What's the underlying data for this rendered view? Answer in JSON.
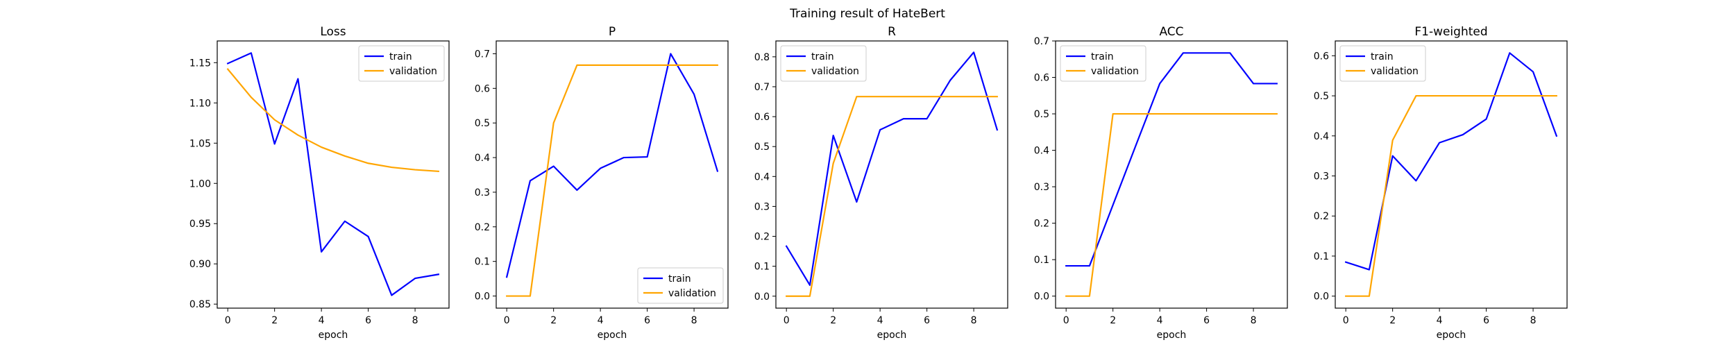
{
  "figure": {
    "suptitle": "Training result of HateBert"
  },
  "colors": {
    "train": "#0000ff",
    "validation": "#ffa500"
  },
  "chart_data": [
    {
      "type": "line",
      "title": "Loss",
      "xlabel": "epoch",
      "ylabel": "",
      "xlim": [
        -0.45,
        9.45
      ],
      "ylim": [
        0.845,
        1.177
      ],
      "xticks": [
        0,
        2,
        4,
        6,
        8
      ],
      "yticks": [
        0.85,
        0.9,
        0.95,
        1.0,
        1.05,
        1.1,
        1.15
      ],
      "ytick_labels": [
        "0.85",
        "0.90",
        "0.95",
        "1.00",
        "1.05",
        "1.10",
        "1.15"
      ],
      "legend": "upper right",
      "grid": false,
      "x": [
        0,
        1,
        2,
        3,
        4,
        5,
        6,
        7,
        8,
        9
      ],
      "series": [
        {
          "name": "train",
          "color": "#0000ff",
          "values": [
            1.149,
            1.162,
            1.049,
            1.13,
            0.915,
            0.953,
            0.934,
            0.861,
            0.882,
            0.887
          ]
        },
        {
          "name": "validation",
          "color": "#ffa500",
          "values": [
            1.142,
            1.107,
            1.079,
            1.06,
            1.045,
            1.034,
            1.025,
            1.02,
            1.017,
            1.015
          ]
        }
      ]
    },
    {
      "type": "line",
      "title": "P",
      "xlabel": "epoch",
      "ylabel": "",
      "xlim": [
        -0.45,
        9.45
      ],
      "ylim": [
        -0.035,
        0.737
      ],
      "xticks": [
        0,
        2,
        4,
        6,
        8
      ],
      "yticks": [
        0.0,
        0.1,
        0.2,
        0.3,
        0.4,
        0.5,
        0.6,
        0.7
      ],
      "ytick_labels": [
        "0.0",
        "0.1",
        "0.2",
        "0.3",
        "0.4",
        "0.5",
        "0.6",
        "0.7"
      ],
      "legend": "lower right",
      "grid": false,
      "x": [
        0,
        1,
        2,
        3,
        4,
        5,
        6,
        7,
        8,
        9
      ],
      "series": [
        {
          "name": "train",
          "color": "#0000ff",
          "values": [
            0.055,
            0.333,
            0.375,
            0.306,
            0.369,
            0.4,
            0.402,
            0.7,
            0.583,
            0.361
          ]
        },
        {
          "name": "validation",
          "color": "#ffa500",
          "values": [
            0.0,
            0.0,
            0.5,
            0.667,
            0.667,
            0.667,
            0.667,
            0.667,
            0.667,
            0.667
          ]
        }
      ]
    },
    {
      "type": "line",
      "title": "R",
      "xlabel": "epoch",
      "ylabel": "",
      "xlim": [
        -0.45,
        9.45
      ],
      "ylim": [
        -0.04,
        0.853
      ],
      "xticks": [
        0,
        2,
        4,
        6,
        8
      ],
      "yticks": [
        0.0,
        0.1,
        0.2,
        0.3,
        0.4,
        0.5,
        0.6,
        0.7,
        0.8
      ],
      "ytick_labels": [
        "0.0",
        "0.1",
        "0.2",
        "0.3",
        "0.4",
        "0.5",
        "0.6",
        "0.7",
        "0.8"
      ],
      "legend": "upper left",
      "grid": false,
      "x": [
        0,
        1,
        2,
        3,
        4,
        5,
        6,
        7,
        8,
        9
      ],
      "series": [
        {
          "name": "train",
          "color": "#0000ff",
          "values": [
            0.167,
            0.037,
            0.537,
            0.315,
            0.556,
            0.593,
            0.593,
            0.722,
            0.815,
            0.556
          ]
        },
        {
          "name": "validation",
          "color": "#ffa500",
          "values": [
            0.0,
            0.0,
            0.444,
            0.667,
            0.667,
            0.667,
            0.667,
            0.667,
            0.667,
            0.667
          ]
        }
      ]
    },
    {
      "type": "line",
      "title": "ACC",
      "xlabel": "epoch",
      "ylabel": "",
      "xlim": [
        -0.45,
        9.45
      ],
      "ylim": [
        -0.033,
        0.7
      ],
      "xticks": [
        0,
        2,
        4,
        6,
        8
      ],
      "yticks": [
        0.0,
        0.1,
        0.2,
        0.3,
        0.4,
        0.5,
        0.6,
        0.7
      ],
      "ytick_labels": [
        "0.0",
        "0.1",
        "0.2",
        "0.3",
        "0.4",
        "0.5",
        "0.6",
        "0.7"
      ],
      "legend": "upper left",
      "grid": false,
      "x": [
        0,
        1,
        2,
        3,
        4,
        5,
        6,
        7,
        8,
        9
      ],
      "series": [
        {
          "name": "train",
          "color": "#0000ff",
          "values": [
            0.083,
            0.083,
            0.25,
            0.417,
            0.583,
            0.667,
            0.667,
            0.667,
            0.583,
            0.583
          ]
        },
        {
          "name": "validation",
          "color": "#ffa500",
          "values": [
            0.0,
            0.0,
            0.5,
            0.5,
            0.5,
            0.5,
            0.5,
            0.5,
            0.5,
            0.5
          ]
        }
      ]
    },
    {
      "type": "line",
      "title": "F1-weighted",
      "xlabel": "epoch",
      "ylabel": "",
      "xlim": [
        -0.45,
        9.45
      ],
      "ylim": [
        -0.03,
        0.637
      ],
      "xticks": [
        0,
        2,
        4,
        6,
        8
      ],
      "yticks": [
        0.0,
        0.1,
        0.2,
        0.3,
        0.4,
        0.5,
        0.6
      ],
      "ytick_labels": [
        "0.0",
        "0.1",
        "0.2",
        "0.3",
        "0.4",
        "0.5",
        "0.6"
      ],
      "legend": "upper left",
      "grid": false,
      "x": [
        0,
        1,
        2,
        3,
        4,
        5,
        6,
        7,
        8,
        9
      ],
      "series": [
        {
          "name": "train",
          "color": "#0000ff",
          "values": [
            0.085,
            0.066,
            0.35,
            0.288,
            0.383,
            0.403,
            0.442,
            0.607,
            0.56,
            0.4
          ]
        },
        {
          "name": "validation",
          "color": "#ffa500",
          "values": [
            0.0,
            0.0,
            0.389,
            0.5,
            0.5,
            0.5,
            0.5,
            0.5,
            0.5,
            0.5
          ]
        }
      ]
    }
  ]
}
